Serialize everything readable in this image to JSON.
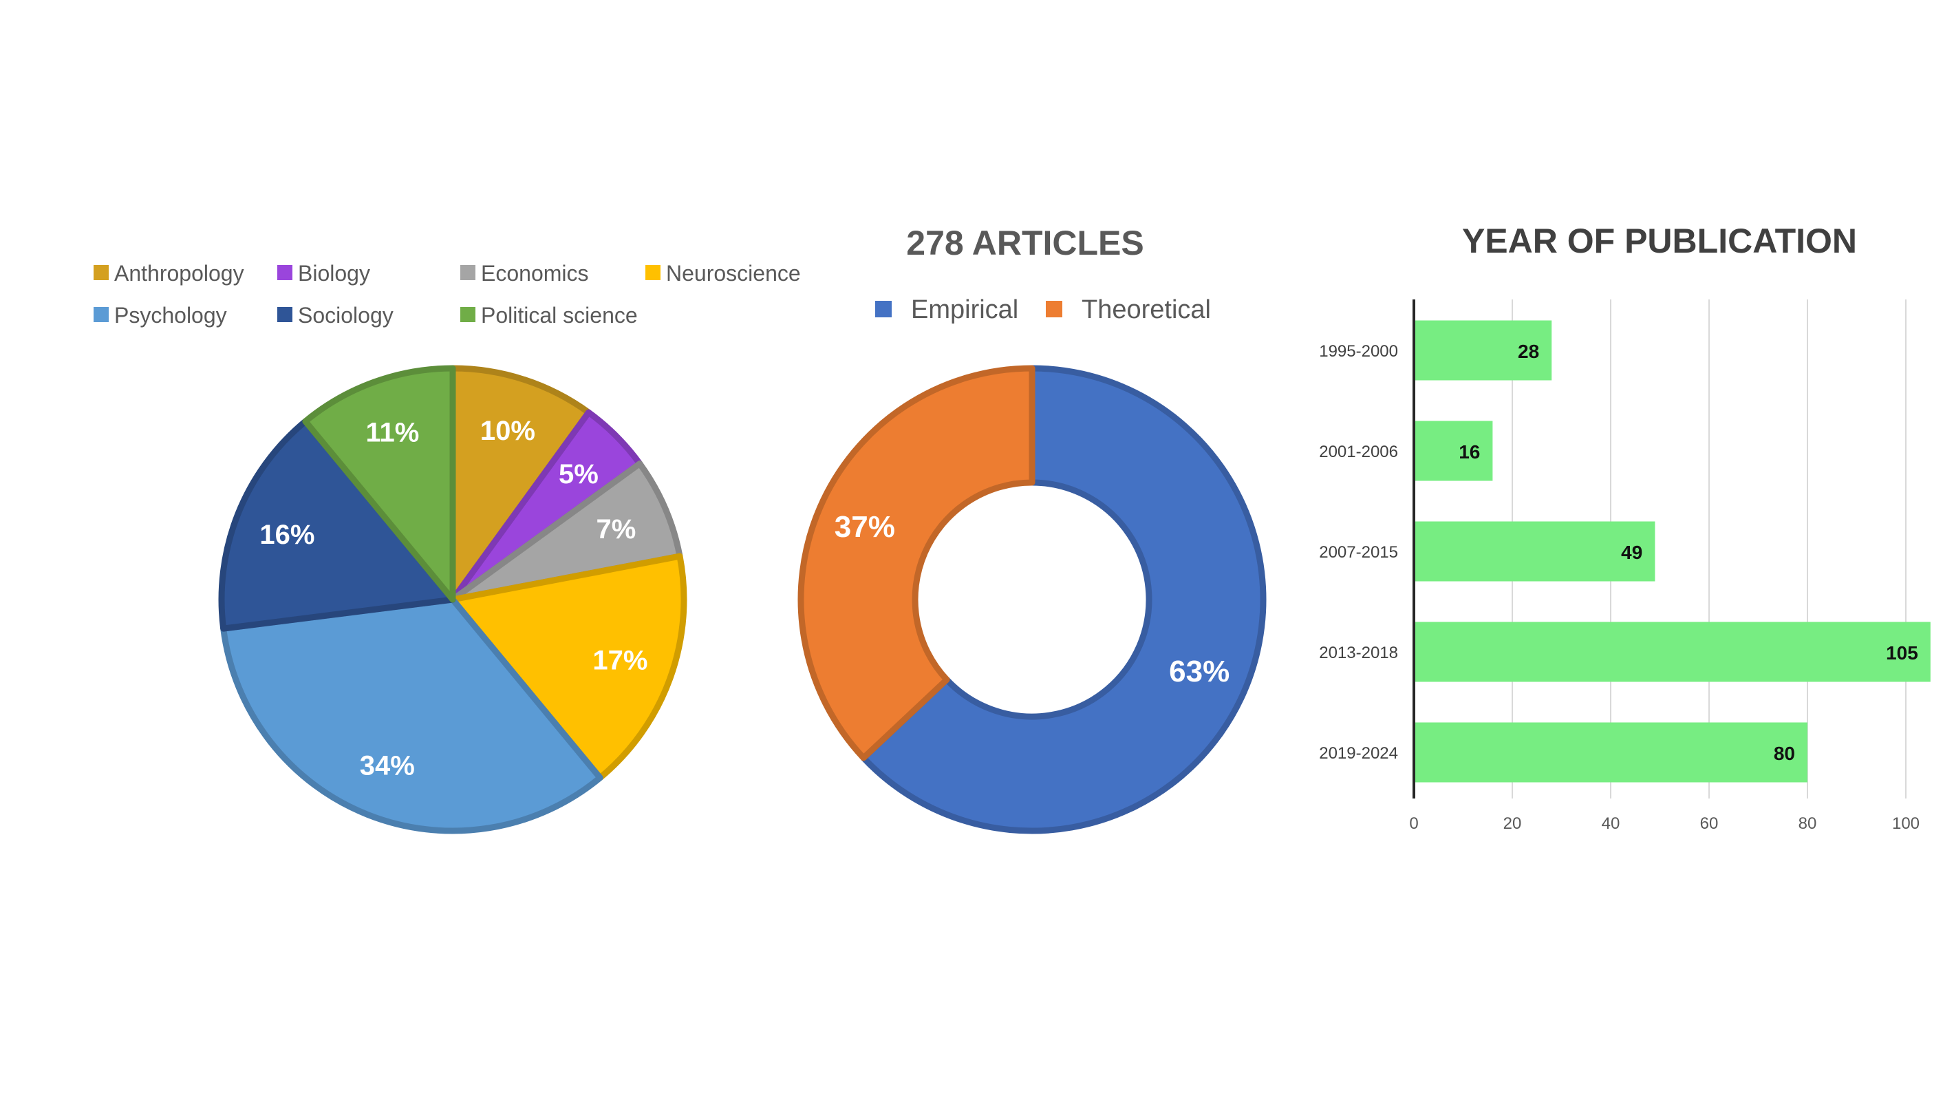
{
  "chart_data": [
    {
      "type": "pie",
      "title": "",
      "legend_placement": "top",
      "categories": [
        "Anthropology",
        "Biology",
        "Economics",
        "Neuroscience",
        "Psychology",
        "Sociology",
        "Political science"
      ],
      "values": [
        10,
        5,
        7,
        17,
        34,
        16,
        11
      ],
      "data_labels": [
        "10%",
        "5%",
        "7%",
        "17%",
        "34%",
        "16%",
        "11%"
      ],
      "colors": [
        "#D4A020",
        "#9A45DC",
        "#A5A5A5",
        "#FFC000",
        "#5B9BD5",
        "#2F5597",
        "#70AD47"
      ]
    },
    {
      "type": "pie",
      "subtype": "donut",
      "title": "278 ARTICLES",
      "legend_placement": "top",
      "categories": [
        "Empirical",
        "Theoretical"
      ],
      "values": [
        63,
        37
      ],
      "data_labels": [
        "63%",
        "37%"
      ],
      "colors": [
        "#4472C4",
        "#ED7D31"
      ]
    },
    {
      "type": "bar",
      "orientation": "horizontal",
      "title": "YEAR OF PUBLICATION",
      "categories": [
        "1995-2000",
        "2001-2006",
        "2007-2015",
        "2013-2018",
        "2019-2024"
      ],
      "values": [
        28,
        16,
        49,
        105,
        80
      ],
      "data_labels": [
        "28",
        "16",
        "49",
        "105",
        "80"
      ],
      "xlim": [
        0,
        105
      ],
      "xticks": [
        "0",
        "20",
        "40",
        "60",
        "80",
        "100"
      ],
      "grid": true,
      "color": "#77ED82"
    }
  ]
}
